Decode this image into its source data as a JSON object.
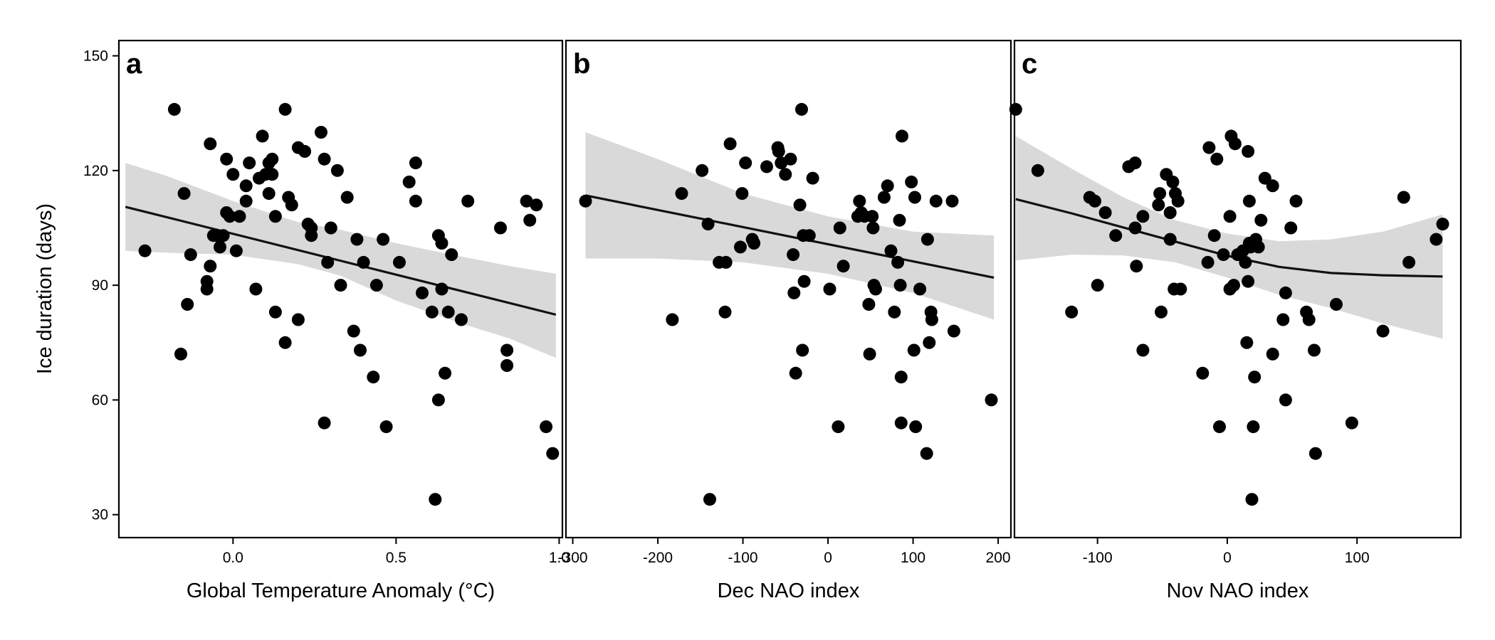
{
  "chart_data": [
    {
      "type": "scatter",
      "panel_label": "a",
      "xlabel": "Global Temperature Anomaly (°C)",
      "ylabel": "Ice duration (days)",
      "xlim": [
        -0.35,
        1.01
      ],
      "ylim": [
        24,
        154
      ],
      "x_ticks": [
        0.0,
        0.5,
        1.0
      ],
      "x_tick_labels": [
        "0.0",
        "0.5",
        "1.0"
      ],
      "y_ticks": [
        30,
        60,
        90,
        120,
        150
      ],
      "y_tick_labels": [
        "30",
        "60",
        "90",
        "120",
        "150"
      ],
      "grid": false,
      "points": [
        [
          -0.27,
          99
        ],
        [
          -0.18,
          136
        ],
        [
          -0.16,
          72
        ],
        [
          -0.15,
          114
        ],
        [
          -0.14,
          85
        ],
        [
          -0.13,
          98
        ],
        [
          -0.08,
          89
        ],
        [
          -0.08,
          91
        ],
        [
          -0.07,
          127
        ],
        [
          -0.07,
          95
        ],
        [
          -0.06,
          103
        ],
        [
          -0.05,
          103
        ],
        [
          -0.04,
          100
        ],
        [
          -0.03,
          103
        ],
        [
          -0.02,
          123
        ],
        [
          -0.02,
          109
        ],
        [
          -0.01,
          108
        ],
        [
          0.0,
          119
        ],
        [
          0.01,
          99
        ],
        [
          0.02,
          108
        ],
        [
          0.04,
          112
        ],
        [
          0.04,
          116
        ],
        [
          0.05,
          122
        ],
        [
          0.07,
          89
        ],
        [
          0.08,
          118
        ],
        [
          0.09,
          129
        ],
        [
          0.1,
          119
        ],
        [
          0.11,
          114
        ],
        [
          0.11,
          122
        ],
        [
          0.12,
          123
        ],
        [
          0.12,
          119
        ],
        [
          0.13,
          108
        ],
        [
          0.13,
          83
        ],
        [
          0.16,
          136
        ],
        [
          0.16,
          75
        ],
        [
          0.17,
          113
        ],
        [
          0.18,
          111
        ],
        [
          0.2,
          126
        ],
        [
          0.2,
          81
        ],
        [
          0.22,
          125
        ],
        [
          0.23,
          106
        ],
        [
          0.24,
          105
        ],
        [
          0.24,
          103
        ],
        [
          0.27,
          130
        ],
        [
          0.28,
          123
        ],
        [
          0.28,
          54
        ],
        [
          0.29,
          96
        ],
        [
          0.3,
          105
        ],
        [
          0.32,
          120
        ],
        [
          0.33,
          90
        ],
        [
          0.35,
          113
        ],
        [
          0.37,
          78
        ],
        [
          0.38,
          102
        ],
        [
          0.39,
          73
        ],
        [
          0.4,
          96
        ],
        [
          0.43,
          66
        ],
        [
          0.44,
          90
        ],
        [
          0.46,
          102
        ],
        [
          0.47,
          53
        ],
        [
          0.51,
          96
        ],
        [
          0.54,
          117
        ],
        [
          0.56,
          122
        ],
        [
          0.56,
          112
        ],
        [
          0.58,
          88
        ],
        [
          0.61,
          83
        ],
        [
          0.62,
          34
        ],
        [
          0.63,
          103
        ],
        [
          0.63,
          60
        ],
        [
          0.64,
          101
        ],
        [
          0.64,
          89
        ],
        [
          0.65,
          67
        ],
        [
          0.66,
          83
        ],
        [
          0.67,
          98
        ],
        [
          0.7,
          81
        ],
        [
          0.72,
          112
        ],
        [
          0.82,
          105
        ],
        [
          0.84,
          73
        ],
        [
          0.84,
          69
        ],
        [
          0.9,
          112
        ],
        [
          0.91,
          107
        ],
        [
          0.93,
          111
        ],
        [
          0.96,
          53
        ],
        [
          0.98,
          46
        ]
      ],
      "fit_line": {
        "x": [
          -0.33,
          0.99
        ],
        "y": [
          110.5,
          82.3
        ]
      },
      "confidence_band": {
        "x": [
          -0.33,
          -0.2,
          0.0,
          0.2,
          0.33,
          0.5,
          0.7,
          0.85,
          0.99
        ],
        "lower": [
          99,
          98.5,
          98,
          95.5,
          92.5,
          86,
          80,
          76,
          71
        ],
        "upper": [
          122,
          118.5,
          112,
          106.5,
          104.5,
          101,
          97.5,
          95,
          93
        ]
      }
    },
    {
      "type": "scatter",
      "panel_label": "b",
      "xlabel": "Dec NAO index",
      "xlim": [
        -308,
        215
      ],
      "ylim": [
        24,
        154
      ],
      "x_ticks": [
        -300,
        -200,
        -100,
        0,
        100,
        200
      ],
      "x_tick_labels": [
        "-300",
        "-200",
        "-100",
        "0",
        "100",
        "200"
      ],
      "grid": false,
      "points": [
        [
          -285,
          112
        ],
        [
          -183,
          81
        ],
        [
          -172,
          114
        ],
        [
          -148,
          120
        ],
        [
          -141,
          106
        ],
        [
          -139,
          34
        ],
        [
          -128,
          96
        ],
        [
          -121,
          83
        ],
        [
          -120,
          96
        ],
        [
          -115,
          127
        ],
        [
          -103,
          100
        ],
        [
          -101,
          114
        ],
        [
          -97,
          122
        ],
        [
          -89,
          102
        ],
        [
          -87,
          101
        ],
        [
          -72,
          121
        ],
        [
          -59,
          126
        ],
        [
          -58,
          125
        ],
        [
          -55,
          122
        ],
        [
          -50,
          119
        ],
        [
          -44,
          123
        ],
        [
          -41,
          98
        ],
        [
          -40,
          88
        ],
        [
          -38,
          67
        ],
        [
          -33,
          111
        ],
        [
          -31,
          136
        ],
        [
          -30,
          73
        ],
        [
          -29,
          103
        ],
        [
          -28,
          91
        ],
        [
          -22,
          103
        ],
        [
          -18,
          118
        ],
        [
          2,
          89
        ],
        [
          12,
          53
        ],
        [
          14,
          105
        ],
        [
          18,
          95
        ],
        [
          35,
          108
        ],
        [
          37,
          112
        ],
        [
          39,
          109
        ],
        [
          43,
          108
        ],
        [
          48,
          85
        ],
        [
          49,
          72
        ],
        [
          52,
          108
        ],
        [
          53,
          105
        ],
        [
          54,
          90
        ],
        [
          56,
          89
        ],
        [
          66,
          113
        ],
        [
          70,
          116
        ],
        [
          74,
          99
        ],
        [
          78,
          83
        ],
        [
          82,
          96
        ],
        [
          84,
          107
        ],
        [
          85,
          90
        ],
        [
          86,
          66
        ],
        [
          86,
          54
        ],
        [
          87,
          129
        ],
        [
          98,
          117
        ],
        [
          101,
          73
        ],
        [
          102,
          113
        ],
        [
          103,
          53
        ],
        [
          108,
          89
        ],
        [
          116,
          46
        ],
        [
          117,
          102
        ],
        [
          119,
          75
        ],
        [
          121,
          83
        ],
        [
          122,
          81
        ],
        [
          127,
          112
        ],
        [
          146,
          112
        ],
        [
          148,
          78
        ],
        [
          192,
          60
        ]
      ],
      "fit_line": {
        "x": [
          -285,
          195
        ],
        "y": [
          113.5,
          92
        ]
      },
      "confidence_band": {
        "x": [
          -285,
          -200,
          -100,
          0,
          100,
          195
        ],
        "lower": [
          97,
          97,
          96,
          93,
          88,
          81
        ],
        "upper": [
          130,
          123,
          114,
          108,
          104,
          103
        ]
      }
    },
    {
      "type": "scatter",
      "panel_label": "c",
      "xlabel": "Nov NAO index",
      "xlim": [
        -164,
        180
      ],
      "ylim": [
        24,
        154
      ],
      "x_ticks": [
        -100,
        0,
        100
      ],
      "x_tick_labels": [
        "-100",
        "0",
        "100"
      ],
      "grid": false,
      "points": [
        [
          -163,
          136
        ],
        [
          -146,
          120
        ],
        [
          -120,
          83
        ],
        [
          -106,
          113
        ],
        [
          -102,
          112
        ],
        [
          -100,
          90
        ],
        [
          -94,
          109
        ],
        [
          -86,
          103
        ],
        [
          -76,
          121
        ],
        [
          -71,
          122
        ],
        [
          -70,
          95
        ],
        [
          -71,
          105
        ],
        [
          -65,
          73
        ],
        [
          -65,
          108
        ],
        [
          -53,
          111
        ],
        [
          -52,
          114
        ],
        [
          -51,
          83
        ],
        [
          -47,
          119
        ],
        [
          -44,
          102
        ],
        [
          -44,
          109
        ],
        [
          -42,
          117
        ],
        [
          -41,
          89
        ],
        [
          -40,
          114
        ],
        [
          -38,
          112
        ],
        [
          -36,
          89
        ],
        [
          -19,
          67
        ],
        [
          -15,
          96
        ],
        [
          -14,
          126
        ],
        [
          -10,
          103
        ],
        [
          -8,
          123
        ],
        [
          -6,
          53
        ],
        [
          -3,
          98
        ],
        [
          2,
          108
        ],
        [
          2,
          89
        ],
        [
          3,
          129
        ],
        [
          5,
          90
        ],
        [
          6,
          127
        ],
        [
          8,
          98
        ],
        [
          12,
          99
        ],
        [
          14,
          96
        ],
        [
          15,
          75
        ],
        [
          16,
          91
        ],
        [
          16,
          125
        ],
        [
          17,
          101
        ],
        [
          17,
          112
        ],
        [
          18,
          100
        ],
        [
          19,
          34
        ],
        [
          20,
          53
        ],
        [
          21,
          66
        ],
        [
          22,
          102
        ],
        [
          24,
          100
        ],
        [
          26,
          107
        ],
        [
          29,
          118
        ],
        [
          35,
          72
        ],
        [
          35,
          116
        ],
        [
          43,
          81
        ],
        [
          45,
          60
        ],
        [
          45,
          88
        ],
        [
          49,
          105
        ],
        [
          53,
          112
        ],
        [
          61,
          83
        ],
        [
          63,
          81
        ],
        [
          67,
          73
        ],
        [
          68,
          46
        ],
        [
          84,
          85
        ],
        [
          96,
          54
        ],
        [
          120,
          78
        ],
        [
          136,
          113
        ],
        [
          140,
          96
        ],
        [
          161,
          102
        ],
        [
          166,
          106
        ]
      ],
      "fit_line": {
        "x": [
          -163,
          -120,
          -80,
          -40,
          0,
          40,
          80,
          120,
          166
        ],
        "y": [
          112.5,
          108.8,
          105.1,
          101.4,
          97.7,
          94.8,
          93.2,
          92.6,
          92.3
        ]
      },
      "confidence_band": {
        "x": [
          -163,
          -120,
          -80,
          -40,
          0,
          40,
          80,
          120,
          166
        ],
        "lower": [
          96.5,
          98,
          97.8,
          96,
          92,
          87.5,
          84,
          80,
          76
        ],
        "upper": [
          129,
          120.5,
          113,
          107,
          103.5,
          101.5,
          102,
          104,
          108.5
        ]
      }
    }
  ],
  "style": {
    "point_color": "#000000",
    "line_color": "#111111",
    "band_color": "#d9d9d9",
    "frame_color": "#000000"
  }
}
